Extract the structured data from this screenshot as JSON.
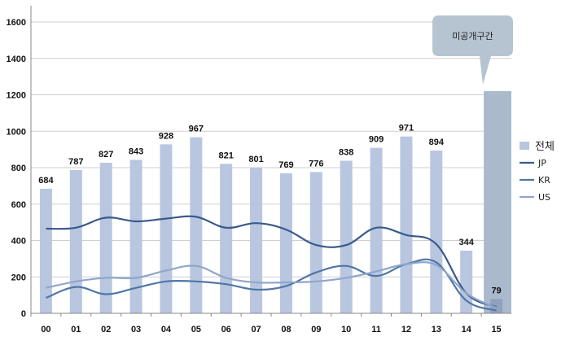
{
  "chart_data": {
    "type": "bar",
    "title": "",
    "xlabel": "",
    "ylabel": "",
    "ylim": [
      0,
      1600
    ],
    "yticks": [
      0,
      200,
      400,
      600,
      800,
      1000,
      1200,
      1400,
      1600
    ],
    "grid": true,
    "legend_position": "right",
    "categories": [
      "00",
      "01",
      "02",
      "03",
      "04",
      "05",
      "06",
      "07",
      "08",
      "09",
      "10",
      "11",
      "12",
      "13",
      "14",
      "15"
    ],
    "series": [
      {
        "name": "전체",
        "kind": "bar",
        "color": "#b8c6e0",
        "values": [
          684,
          787,
          827,
          843,
          928,
          967,
          821,
          801,
          769,
          776,
          838,
          909,
          971,
          894,
          344,
          79
        ]
      },
      {
        "name": "JP",
        "kind": "line",
        "color": "#3a5a8c",
        "values": [
          465,
          470,
          525,
          505,
          520,
          530,
          470,
          495,
          460,
          375,
          375,
          470,
          430,
          380,
          110,
          35
        ]
      },
      {
        "name": "KR",
        "kind": "line",
        "color": "#4f76a6",
        "values": [
          85,
          145,
          105,
          140,
          175,
          175,
          160,
          130,
          150,
          225,
          260,
          205,
          270,
          280,
          70,
          15
        ]
      },
      {
        "name": "US",
        "kind": "line",
        "color": "#8fa6cc",
        "values": [
          140,
          175,
          195,
          195,
          235,
          260,
          195,
          170,
          170,
          175,
          195,
          230,
          270,
          265,
          110,
          30
        ]
      }
    ],
    "annotations": [
      {
        "text": "미공개구간",
        "target_category": "15",
        "shaded_value": 1220
      }
    ],
    "colors": {
      "bar": "#b8c6e0",
      "shade": "#aab9cc",
      "callout": "#b5c4d0",
      "axis": "#888888",
      "grid": "#cfcfcf"
    }
  }
}
